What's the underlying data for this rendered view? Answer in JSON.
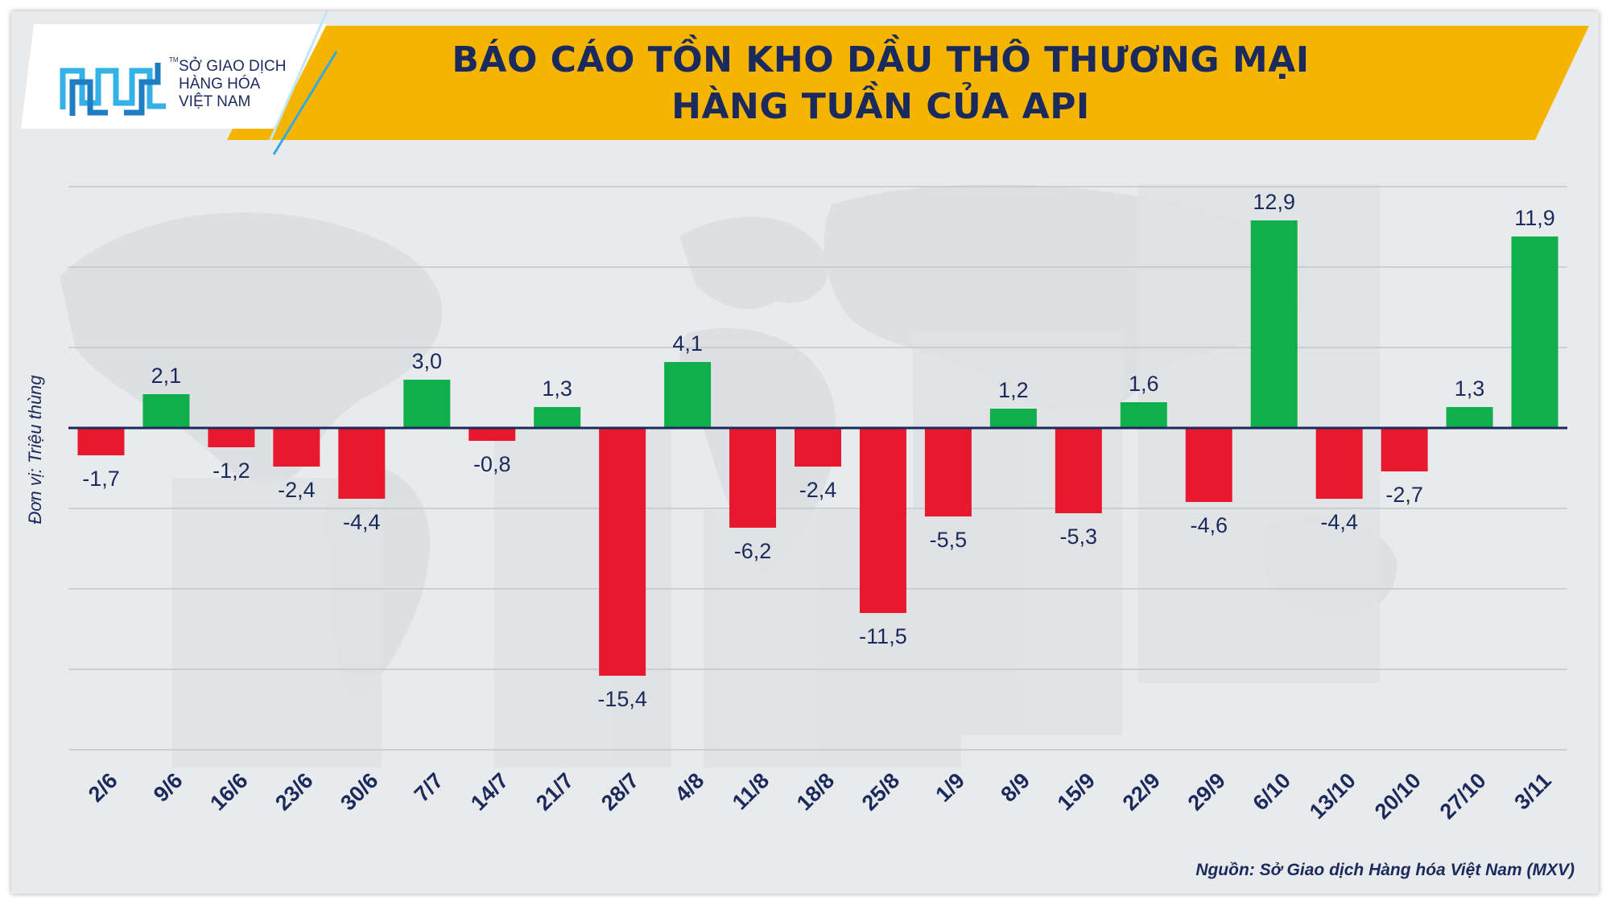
{
  "header": {
    "title_line1": "BÁO CÁO TỒN KHO DẦU THÔ THƯƠNG MẠI",
    "title_line2": "HÀNG TUẦN CỦA API"
  },
  "logo": {
    "line1": "SỞ GIAO DỊCH",
    "line2": "HÀNG HÓA",
    "line3": "VIỆT NAM",
    "tm": "TM",
    "icon": "mxv-logo-icon"
  },
  "colors": {
    "positive": "#10ae4c",
    "negative": "#e8192f",
    "banner": "#f4b400",
    "title": "#1b2a5c"
  },
  "chart_data": {
    "type": "bar",
    "categories": [
      "2/6",
      "9/6",
      "16/6",
      "23/6",
      "30/6",
      "7/7",
      "14/7",
      "21/7",
      "28/7",
      "4/8",
      "11/8",
      "18/8",
      "25/8",
      "1/9",
      "8/9",
      "15/9",
      "22/9",
      "29/9",
      "6/10",
      "13/10",
      "20/10",
      "27/10",
      "3/11"
    ],
    "values": [
      -1.7,
      2.1,
      -1.2,
      -2.4,
      -4.4,
      3.0,
      -0.8,
      1.3,
      -15.4,
      4.1,
      -6.2,
      -2.4,
      -11.5,
      -5.5,
      1.2,
      -5.3,
      1.6,
      -4.6,
      12.9,
      -4.4,
      -2.7,
      1.3,
      11.9
    ],
    "value_labels": [
      "-1,7",
      "2,1",
      "-1,2",
      "-2,4",
      "-4,4",
      "3,0",
      "-0,8",
      "1,3",
      "-15,4",
      "4,1",
      "-6,2",
      "-2,4",
      "-11,5",
      "-5,5",
      "1,2",
      "-5,3",
      "1,6",
      "-4,6",
      "12,9",
      "-4,4",
      "-2,7",
      "1,3",
      "11,9"
    ],
    "ylabel": "Đơn vị: Triệu thùng",
    "ylim": [
      -20,
      15
    ],
    "grid": true,
    "legend": "none"
  },
  "source": "Nguồn: Sở Giao dịch Hàng hóa Việt Nam (MXV)"
}
